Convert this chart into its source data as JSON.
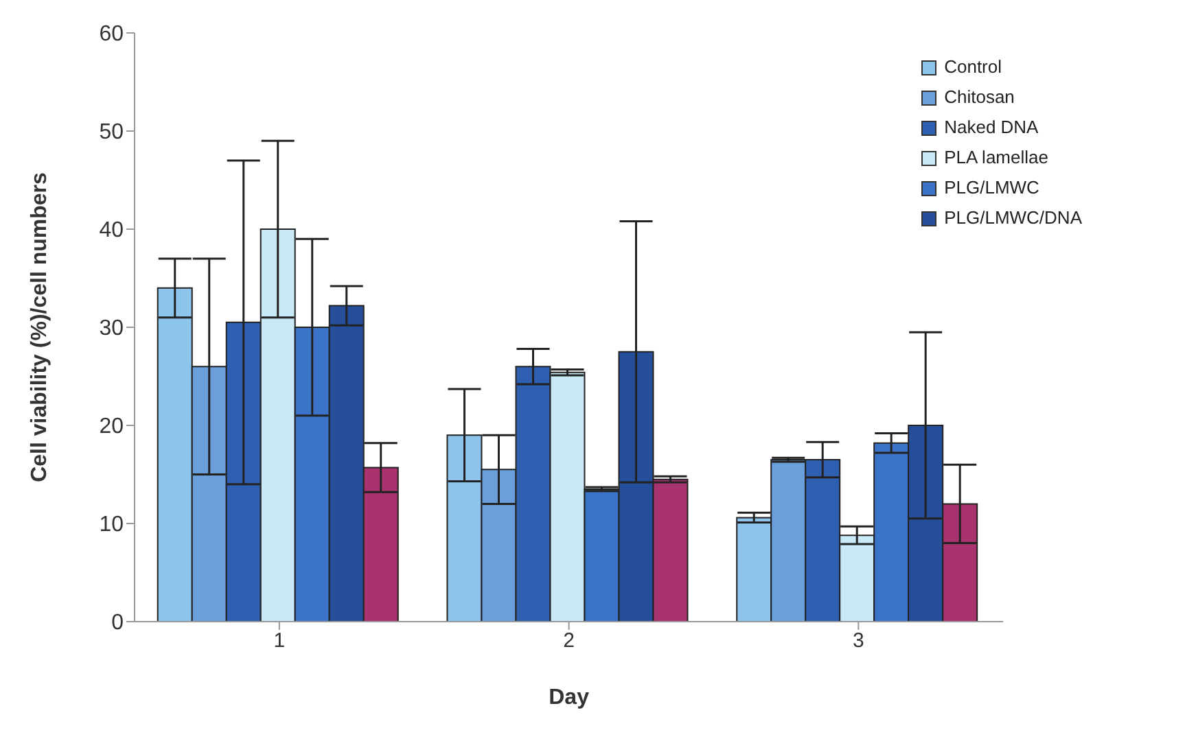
{
  "chart_data": {
    "type": "bar",
    "xlabel": "Day",
    "ylabel": "Cell viability (%)/cell numbers",
    "categories": [
      "1",
      "2",
      "3"
    ],
    "ylim": [
      0,
      60
    ],
    "yticks": [
      0,
      10,
      20,
      30,
      40,
      50,
      60
    ],
    "grid": false,
    "legend": "top right",
    "series": [
      {
        "name": "Control",
        "color": "#8ec5ec",
        "values": [
          34,
          19,
          10.6
        ],
        "errors": [
          3,
          4.7,
          0.5
        ]
      },
      {
        "name": "Chitosan",
        "color": "#6a9fdc",
        "values": [
          26,
          15.5,
          16.5
        ],
        "errors": [
          11,
          3.5,
          0.2
        ]
      },
      {
        "name": "Naked DNA",
        "color": "#2f5fb0",
        "values": [
          30.5,
          26,
          16.5
        ],
        "errors": [
          16.5,
          1.8,
          1.8
        ]
      },
      {
        "name": "PLA lamellae",
        "color": "#c9e9f8",
        "values": [
          40,
          25.4,
          8.8
        ],
        "errors": [
          9,
          0.3,
          0.9
        ]
      },
      {
        "name": "PLG/LMWC",
        "color": "#3a73c8",
        "values": [
          30,
          13.5,
          18.2
        ],
        "errors": [
          9,
          0.2,
          1
        ]
      },
      {
        "name": "PLG/LMWC/DNA",
        "color": "#254f9a",
        "values": [
          32.2,
          27.5,
          20
        ],
        "errors": [
          2,
          13.3,
          9.5
        ]
      },
      {
        "color": "#a8336e",
        "values": [
          15.7,
          14.5,
          12
        ],
        "errors": [
          2.5,
          0.3,
          4
        ]
      }
    ]
  }
}
